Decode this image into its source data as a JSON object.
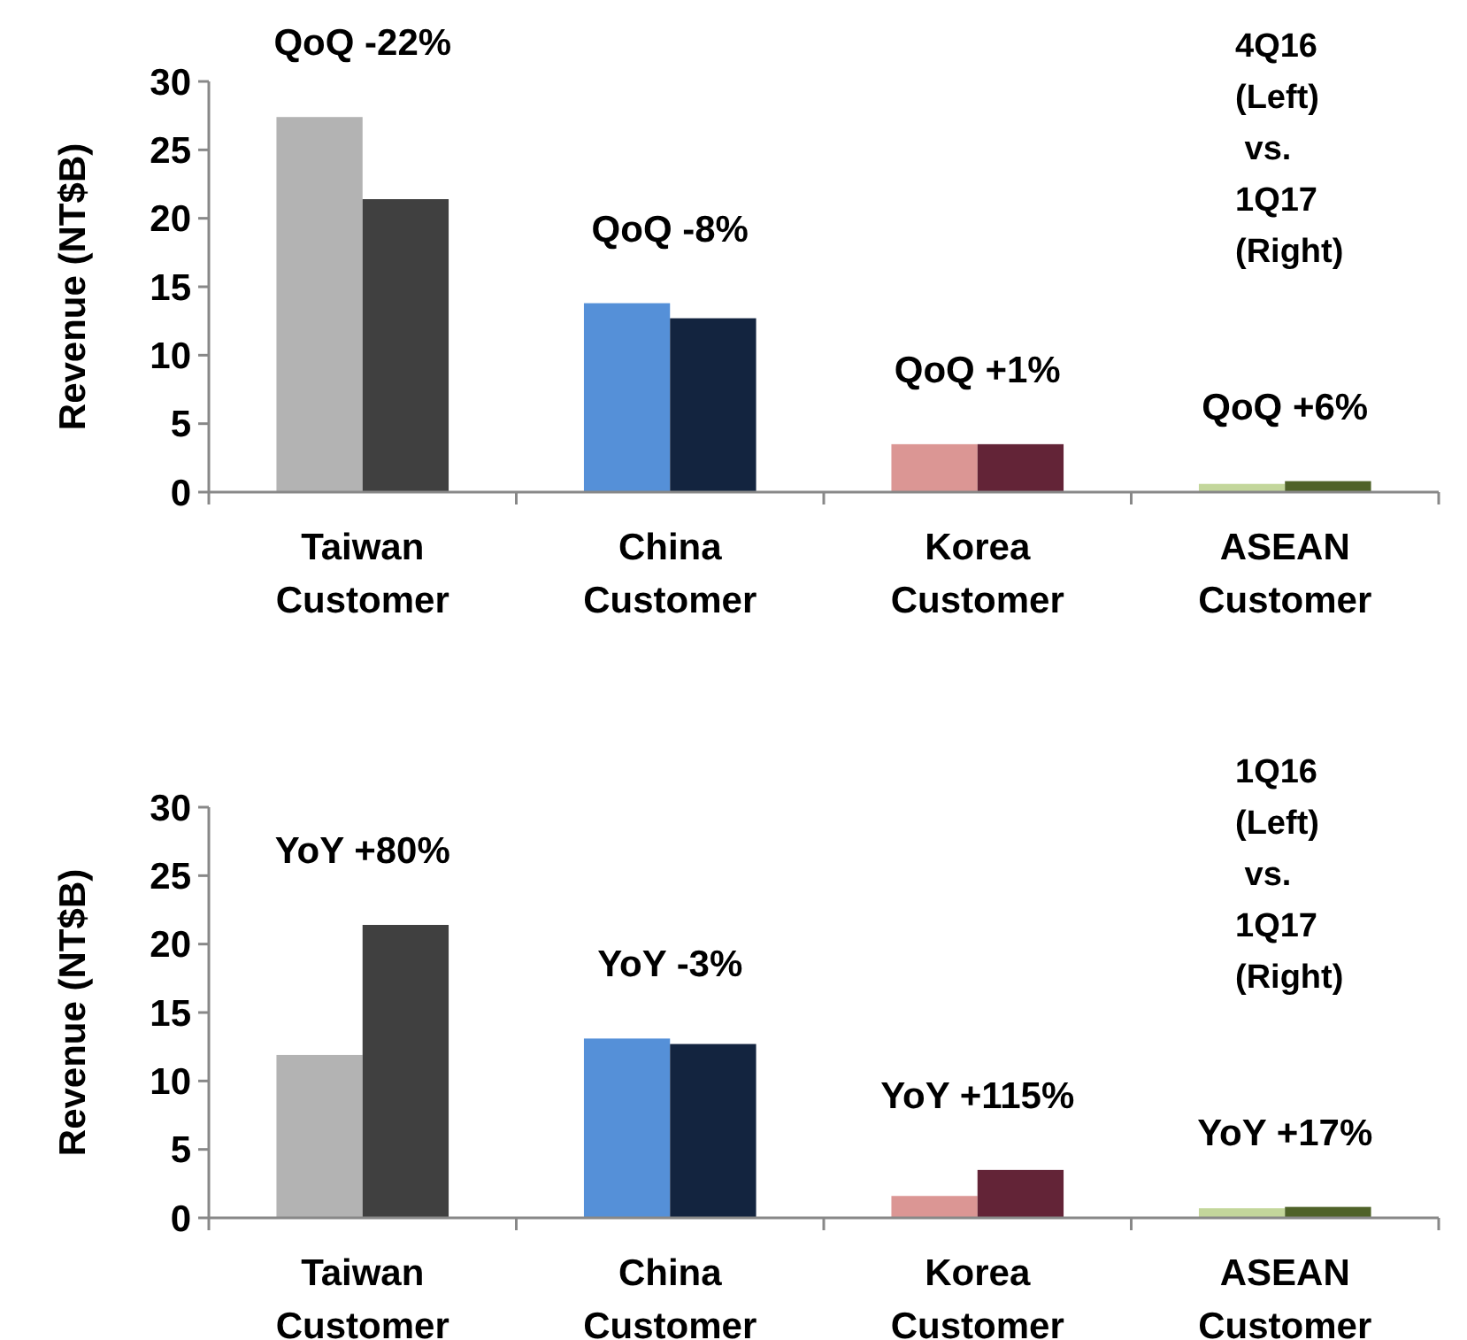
{
  "chart_data": [
    {
      "type": "bar",
      "ylabel": "Revenue (NT$B)",
      "categories": [
        "Taiwan Customer",
        "China Customer",
        "Korea Customer",
        "ASEAN Customer"
      ],
      "ylim": [
        0,
        30
      ],
      "yticks": [
        0,
        5,
        10,
        15,
        20,
        25,
        30
      ],
      "series": [
        {
          "colors": [
            "#b3b3b3",
            "#5590d8",
            "#db9694",
            "#c3d69b"
          ],
          "values": [
            27.4,
            13.8,
            3.5,
            0.6
          ]
        },
        {
          "colors": [
            "#404040",
            "#13243f",
            "#632437",
            "#4f6228"
          ],
          "values": [
            21.4,
            12.7,
            3.5,
            0.8
          ]
        }
      ],
      "annotations": [
        {
          "text": "QoQ -22%",
          "x": "Taiwan Customer",
          "y": 27.4
        },
        {
          "text": "QoQ -8%",
          "x": "China Customer",
          "y": 13.8
        },
        {
          "text": "QoQ +1%",
          "x": "Korea Customer",
          "y": 3.5
        },
        {
          "text": "QoQ +6%",
          "x": "ASEAN Customer",
          "y": 0.8
        },
        "4Q16\n(Left)\n vs.\n1Q17\n(Right)"
      ]
    },
    {
      "type": "bar",
      "ylabel": "Revenue (NT$B)",
      "categories": [
        "Taiwan Customer",
        "China Customer",
        "Korea Customer",
        "ASEAN Customer"
      ],
      "ylim": [
        0,
        30
      ],
      "yticks": [
        0,
        5,
        10,
        15,
        20,
        25,
        30
      ],
      "series": [
        {
          "colors": [
            "#b3b3b3",
            "#5590d8",
            "#db9694",
            "#c3d69b"
          ],
          "values": [
            11.9,
            13.1,
            1.6,
            0.7
          ]
        },
        {
          "colors": [
            "#404040",
            "#13243f",
            "#632437",
            "#4f6228"
          ],
          "values": [
            21.4,
            12.7,
            3.5,
            0.8
          ]
        }
      ],
      "annotations": [
        {
          "text": "YoY +80%",
          "x": "Taiwan Customer",
          "y": 21.4
        },
        {
          "text": "YoY -3%",
          "x": "China Customer",
          "y": 13.1
        },
        {
          "text": "YoY +115%",
          "x": "Korea Customer",
          "y": 3.5
        },
        {
          "text": "YoY +17%",
          "x": "ASEAN Customer",
          "y": 0.8
        },
        "1Q16\n(Left)\n vs.\n1Q17\n(Right)"
      ]
    }
  ]
}
